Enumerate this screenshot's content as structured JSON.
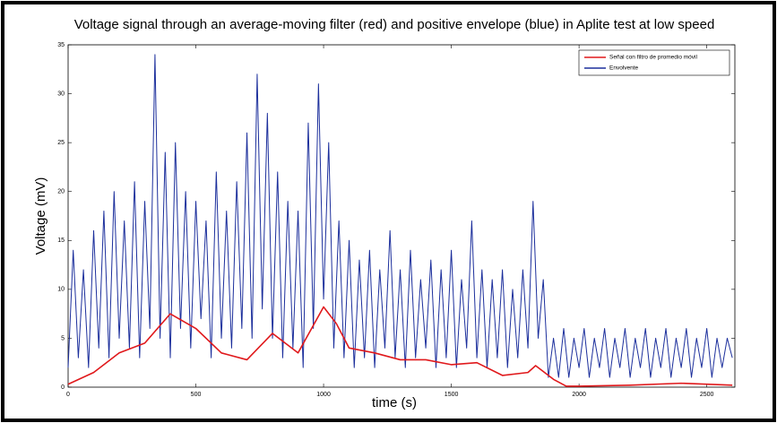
{
  "chart_data": {
    "type": "line",
    "title": "Voltage signal through an average-moving filter (red) and positive envelope (blue) in Aplite test at low speed",
    "xlabel": "time (s)",
    "ylabel": "Voltage (mV)",
    "xlim": [
      0,
      2610
    ],
    "xticks": [
      0,
      500,
      1000,
      1500,
      2000,
      2500
    ],
    "ylim": [
      0,
      35
    ],
    "yticks": [
      0,
      5,
      10,
      15,
      20,
      25,
      30,
      35
    ],
    "legend": "upper right",
    "series": [
      {
        "name": "Envolvente",
        "color": "#1c2f9c",
        "x": [
          0,
          20,
          40,
          60,
          80,
          100,
          120,
          140,
          160,
          180,
          200,
          220,
          240,
          260,
          280,
          300,
          320,
          340,
          360,
          380,
          400,
          420,
          440,
          460,
          480,
          500,
          520,
          540,
          560,
          580,
          600,
          620,
          640,
          660,
          680,
          700,
          720,
          740,
          760,
          780,
          800,
          820,
          840,
          860,
          880,
          900,
          920,
          940,
          960,
          980,
          1000,
          1020,
          1040,
          1060,
          1080,
          1100,
          1120,
          1140,
          1160,
          1180,
          1200,
          1220,
          1240,
          1260,
          1280,
          1300,
          1320,
          1340,
          1360,
          1380,
          1400,
          1420,
          1440,
          1460,
          1480,
          1500,
          1520,
          1540,
          1560,
          1580,
          1600,
          1620,
          1640,
          1660,
          1680,
          1700,
          1720,
          1740,
          1760,
          1780,
          1800,
          1820,
          1840,
          1860,
          1880,
          1900,
          1920,
          1940,
          1960,
          1980,
          2000,
          2020,
          2040,
          2060,
          2080,
          2100,
          2120,
          2140,
          2160,
          2180,
          2200,
          2220,
          2240,
          2260,
          2280,
          2300,
          2320,
          2340,
          2360,
          2380,
          2400,
          2420,
          2440,
          2460,
          2480,
          2500,
          2520,
          2540,
          2560,
          2580,
          2600
        ],
        "values": [
          2,
          14,
          3,
          12,
          2,
          16,
          4,
          18,
          3,
          20,
          5,
          17,
          4,
          21,
          3,
          19,
          6,
          34,
          5,
          24,
          3,
          25,
          6,
          20,
          4,
          19,
          7,
          17,
          3,
          22,
          5,
          18,
          4,
          21,
          6,
          26,
          5,
          32,
          8,
          28,
          5,
          22,
          3,
          19,
          4,
          18,
          2,
          27,
          6,
          31,
          9,
          25,
          4,
          17,
          3,
          15,
          2,
          13,
          3,
          14,
          2,
          12,
          4,
          16,
          3,
          12,
          2,
          14,
          3,
          11,
          4,
          13,
          2,
          12,
          3,
          14,
          2,
          11,
          4,
          17,
          3,
          12,
          2,
          11,
          3,
          12,
          2,
          10,
          3,
          12,
          4,
          19,
          5,
          11,
          1,
          5,
          1,
          6,
          1,
          5,
          2,
          6,
          1,
          5,
          2,
          6,
          1,
          5,
          2,
          6,
          1,
          5,
          2,
          6,
          1,
          5,
          2,
          6,
          1,
          5,
          2,
          6,
          1,
          5,
          2,
          6,
          1,
          5,
          2,
          5,
          3
        ]
      },
      {
        "name": "Señal con filtro de promedio móvil",
        "color": "#e0191c",
        "x": [
          0,
          100,
          200,
          300,
          400,
          500,
          600,
          700,
          800,
          900,
          1000,
          1050,
          1100,
          1200,
          1300,
          1400,
          1500,
          1600,
          1700,
          1800,
          1830,
          1900,
          1950,
          2000,
          2200,
          2400,
          2600
        ],
        "values": [
          0.3,
          1.5,
          3.5,
          4.5,
          7.5,
          6,
          3.5,
          2.8,
          5.5,
          3.5,
          8.2,
          6.5,
          4,
          3.5,
          2.8,
          2.8,
          2.3,
          2.5,
          1.2,
          1.5,
          2.2,
          0.8,
          0.1,
          0.1,
          0.2,
          0.4,
          0.2
        ]
      }
    ]
  }
}
